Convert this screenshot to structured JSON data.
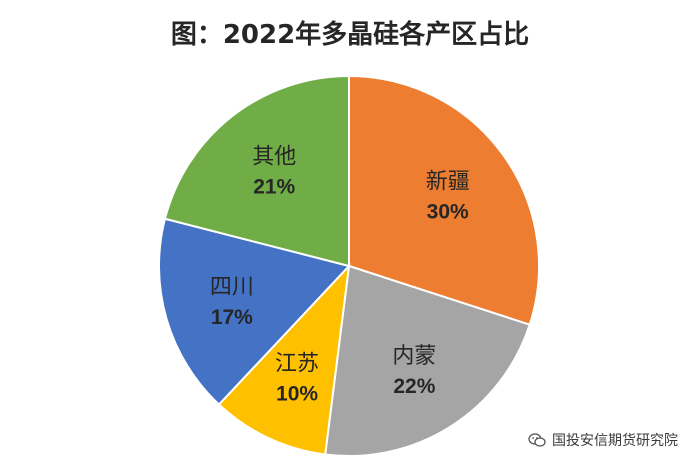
{
  "chart_data": {
    "type": "pie",
    "title": "图：2022年多晶硅各产区占比",
    "slices": [
      {
        "label": "新疆",
        "value": 30,
        "value_label": "30%",
        "color": "#ED7D31"
      },
      {
        "label": "内蒙",
        "value": 22,
        "value_label": "22%",
        "color": "#A5A5A5"
      },
      {
        "label": "江苏",
        "value": 10,
        "value_label": "10%",
        "color": "#FFC000"
      },
      {
        "label": "四川",
        "value": 17,
        "value_label": "17%",
        "color": "#4472C4"
      },
      {
        "label": "其他",
        "value": 21,
        "value_label": "21%",
        "color": "#70AD47"
      }
    ],
    "start": "12 o'clock",
    "direction": "clockwise",
    "legend": "none"
  },
  "watermark": {
    "text": "国投安信期货研究院",
    "icon": "wechat-icon"
  }
}
